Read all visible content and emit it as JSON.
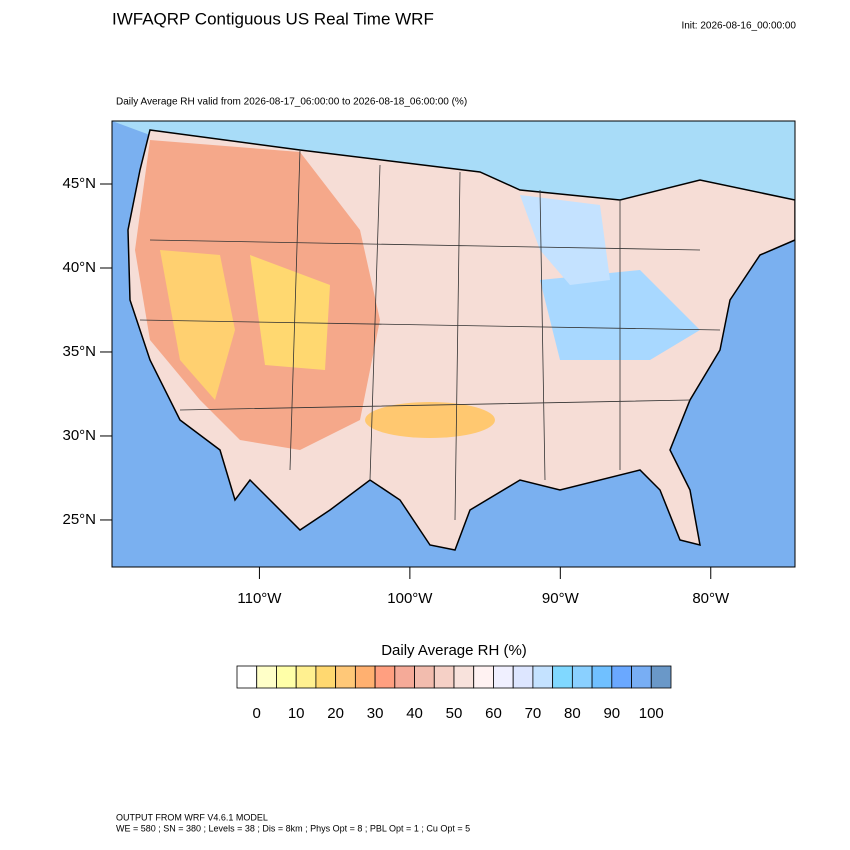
{
  "header": {
    "title": "IWFAQRP Contiguous US Real Time WRF",
    "init": "Init: 2026-08-16_00:00:00"
  },
  "map": {
    "subtitle": "Daily Average RH valid from 2026-08-17_06:00:00 to 2026-08-18_06:00:00   (%)",
    "xlim": [
      -119.8,
      -74.4
    ],
    "ylim": [
      22.2,
      48.75
    ],
    "yticks": [
      {
        "value": 45,
        "label": "45°N"
      },
      {
        "value": 40,
        "label": "40°N"
      },
      {
        "value": 35,
        "label": "35°N"
      },
      {
        "value": 30,
        "label": "30°N"
      },
      {
        "value": 25,
        "label": "25°N"
      }
    ],
    "xticks": [
      {
        "value": -110,
        "label": "110°W"
      },
      {
        "value": -100,
        "label": "100°W"
      },
      {
        "value": -90,
        "label": "90°W"
      },
      {
        "value": -80,
        "label": "80°W"
      }
    ]
  },
  "colorbar": {
    "title": "Daily Average RH  (%)",
    "lim": [
      -5,
      105
    ],
    "colors": [
      "#ffffff",
      "#ffffc8",
      "#ffffa8",
      "#fff090",
      "#ffd870",
      "#ffc878",
      "#ffb070",
      "#ff9f80",
      "#f5aa98",
      "#f2bcae",
      "#f5d0c6",
      "#f8e2dc",
      "#fff2f2",
      "#f0f0ff",
      "#dde6ff",
      "#c4e2ff",
      "#80d8ff",
      "#8ad0ff",
      "#70c0ff",
      "#6aa8ff",
      "#78aef4",
      "#6a98c8"
    ],
    "ticks": [
      0,
      10,
      20,
      30,
      40,
      50,
      60,
      70,
      80,
      90,
      100
    ]
  },
  "footer": {
    "lines": [
      "OUTPUT FROM WRF V4.6.1 MODEL",
      "WE = 580 ; SN = 380 ; Levels = 38 ; Dis = 8km ; Phys Opt = 8 ; PBL Opt = 1 ; Cu Opt = 5"
    ]
  }
}
